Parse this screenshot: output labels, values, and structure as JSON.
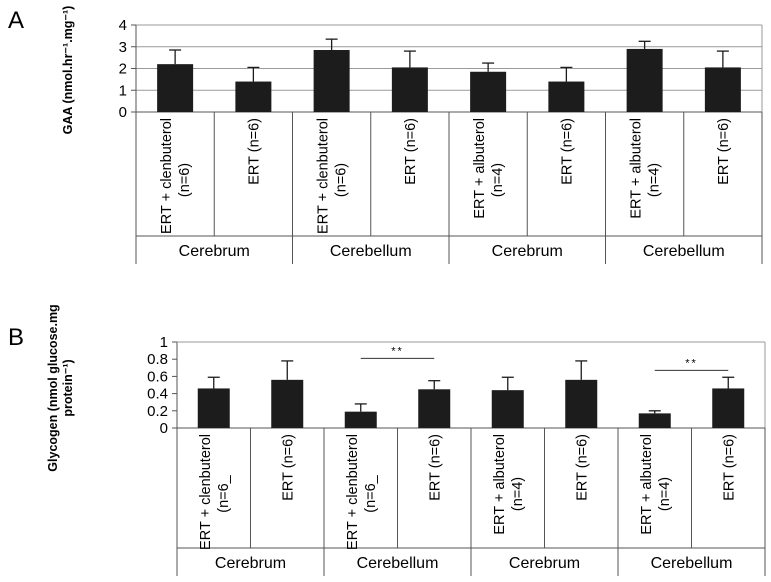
{
  "chart_data": [
    {
      "panel": "A",
      "type": "bar",
      "ylabel": "GAA (nmol.hr⁻¹.mg⁻¹)",
      "ylim": [
        0,
        4
      ],
      "yticks": [
        "0",
        "1",
        "2",
        "3",
        "4"
      ],
      "grid": true,
      "categories": [
        [
          "ERT + clenbuterol",
          "(n=6)"
        ],
        [
          "ERT (n=6)"
        ],
        [
          "ERT + clenbuterol",
          "(n=6)"
        ],
        [
          "ERT (n=6)"
        ],
        [
          "ERT + albuterol",
          "(n=4)"
        ],
        [
          "ERT (n=6)"
        ],
        [
          "ERT + albuterol",
          "(n=4)"
        ],
        [
          "ERT (n=6)"
        ]
      ],
      "groups": [
        "Cerebrum",
        "Cerebellum",
        "Cerebrum",
        "Cerebellum"
      ],
      "values": [
        2.2,
        1.4,
        2.85,
        2.05,
        1.85,
        1.4,
        2.9,
        2.05
      ],
      "errors": [
        0.65,
        0.65,
        0.5,
        0.75,
        0.4,
        0.65,
        0.35,
        0.75
      ],
      "significance": []
    },
    {
      "panel": "B",
      "type": "bar",
      "ylabel": "Glycogen (nmol glucose.mg protein⁻¹)",
      "ylim": [
        0,
        1
      ],
      "yticks": [
        "0",
        "0.2",
        "0.4",
        "0.6",
        "0.8",
        "1"
      ],
      "grid": false,
      "categories": [
        [
          "ERT + clenbuterol",
          "(n=6_"
        ],
        [
          "ERT (n=6)"
        ],
        [
          "ERT + clenbuterol",
          "(n=6_"
        ],
        [
          "ERT (n=6)"
        ],
        [
          "ERT + albuterol",
          "(n=4)"
        ],
        [
          "ERT (n=6)"
        ],
        [
          "ERT + albuterol",
          "(n=4)"
        ],
        [
          "ERT (n=6)"
        ]
      ],
      "groups": [
        "Cerebrum",
        "Cerebellum",
        "Cerebrum",
        "Cerebellum"
      ],
      "values": [
        0.46,
        0.56,
        0.19,
        0.45,
        0.44,
        0.56,
        0.17,
        0.46
      ],
      "errors": [
        0.13,
        0.22,
        0.09,
        0.1,
        0.15,
        0.22,
        0.03,
        0.13
      ],
      "significance": [
        {
          "from": 2,
          "to": 3,
          "label": "**",
          "y": 0.81
        },
        {
          "from": 6,
          "to": 7,
          "label": "**",
          "y": 0.67
        }
      ]
    }
  ],
  "ylabel_lines": {
    "A": [
      "GAA (nmol.hr⁻¹.mg⁻¹)"
    ],
    "B": [
      "Glycogen (nmol glucose.mg",
      "protein⁻¹)"
    ]
  }
}
